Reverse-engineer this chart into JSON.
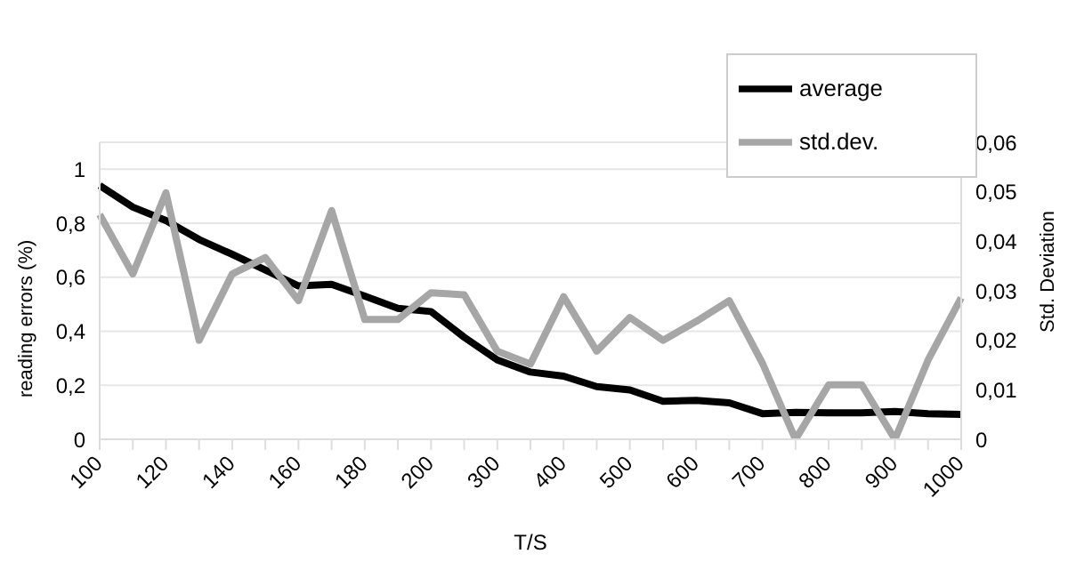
{
  "chart_data": {
    "type": "line",
    "xlabel": "T/S",
    "ylabel": "reading errors (%)",
    "y2label": "Std. Deviation",
    "categories": [
      "100",
      null,
      "120",
      null,
      "140",
      null,
      "160",
      null,
      "180",
      null,
      "200",
      null,
      "300",
      null,
      "400",
      null,
      "500",
      null,
      "600",
      null,
      "700",
      null,
      "800",
      null,
      "900",
      null,
      "1000"
    ],
    "series": [
      {
        "name": "average",
        "color": "#000000",
        "values": [
          0.94,
          0.86,
          0.81,
          0.74,
          0.685,
          0.627,
          0.568,
          0.574,
          0.53,
          0.485,
          0.473,
          0.378,
          0.294,
          0.249,
          0.234,
          0.195,
          0.183,
          0.141,
          0.144,
          0.135,
          0.095,
          0.1,
          0.098,
          0.098,
          0.103,
          0.095,
          0.092
        ]
      },
      {
        "name": "std.dev.",
        "color": "#a6a6a6",
        "axis": "y2",
        "values": [
          0.0454,
          0.0334,
          0.0498,
          0.02,
          0.0334,
          0.0367,
          0.028,
          0.0462,
          0.0242,
          0.0242,
          0.0296,
          0.0292,
          0.0178,
          0.0152,
          0.0288,
          0.0178,
          0.0246,
          0.02,
          0.0238,
          0.028,
          0.0154,
          0,
          0.011,
          0.011,
          0,
          0.016,
          0.0286
        ]
      }
    ],
    "ylim": [
      0,
      1.1
    ],
    "yticks": [
      0,
      {
        "value": 0.2,
        "label": "0,2"
      },
      {
        "value": 0.4,
        "label": "0,4"
      },
      {
        "value": 0.6,
        "label": "0,6"
      },
      {
        "value": 0.8,
        "label": "0,8"
      },
      1
    ],
    "y2lim": [
      0,
      0.06
    ],
    "y2ticks": [
      0,
      {
        "value": 0.01,
        "label": "0,01"
      },
      {
        "value": 0.02,
        "label": "0,02"
      },
      {
        "value": 0.03,
        "label": "0,03"
      },
      {
        "value": 0.04,
        "label": "0,04"
      },
      {
        "value": 0.05,
        "label": "0,05"
      },
      {
        "value": 0.06,
        "label": "0,06"
      }
    ],
    "grid": "y",
    "legend": "top right",
    "marker": "none",
    "line_style": "solid"
  }
}
